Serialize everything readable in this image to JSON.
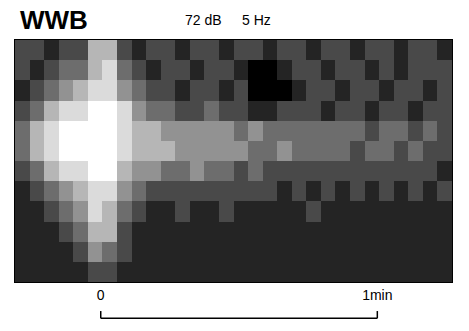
{
  "chart_data": {
    "type": "heatmap",
    "title": "WWB",
    "annotations": [
      "72 dB",
      "5 Hz"
    ],
    "xlim": [
      -0.31,
      1.27
    ],
    "xticks": [
      0,
      {
        "value": 1,
        "label": "1min"
      }
    ],
    "tick_labels": "x",
    "grid": false,
    "color": "gray",
    "cells": [
      [
        4,
        4,
        3,
        4,
        4,
        7,
        7,
        4,
        3,
        4,
        4,
        3,
        4,
        4,
        3,
        4,
        4,
        3,
        4,
        4,
        3,
        4,
        4,
        3,
        4,
        4,
        3,
        4,
        4,
        3
      ],
      [
        4,
        3,
        4,
        5,
        5,
        7,
        8,
        5,
        4,
        3,
        4,
        4,
        3,
        4,
        4,
        3,
        2,
        2,
        3,
        4,
        4,
        3,
        4,
        4,
        3,
        4,
        3,
        4,
        4,
        4
      ],
      [
        3,
        4,
        5,
        6,
        7,
        8,
        8,
        6,
        5,
        4,
        4,
        3,
        4,
        4,
        3,
        4,
        2,
        2,
        2,
        3,
        4,
        4,
        3,
        4,
        4,
        3,
        4,
        4,
        3,
        4
      ],
      [
        4,
        5,
        7,
        8,
        8,
        9,
        9,
        8,
        6,
        5,
        5,
        4,
        4,
        5,
        4,
        4,
        3,
        3,
        4,
        4,
        4,
        3,
        4,
        4,
        3,
        4,
        4,
        3,
        4,
        4
      ],
      [
        5,
        7,
        8,
        9,
        9,
        9,
        9,
        8,
        7,
        7,
        6,
        6,
        6,
        6,
        6,
        5,
        6,
        5,
        5,
        5,
        5,
        5,
        5,
        5,
        4,
        5,
        5,
        4,
        5,
        4
      ],
      [
        5,
        7,
        8,
        9,
        9,
        9,
        9,
        8,
        7,
        7,
        7,
        6,
        6,
        6,
        6,
        6,
        5,
        5,
        6,
        5,
        5,
        5,
        5,
        4,
        5,
        5,
        4,
        5,
        4,
        4
      ],
      [
        4,
        5,
        7,
        8,
        8,
        9,
        9,
        7,
        6,
        6,
        5,
        5,
        6,
        5,
        5,
        4,
        5,
        4,
        4,
        4,
        4,
        4,
        4,
        4,
        4,
        4,
        4,
        4,
        4,
        3
      ],
      [
        3,
        4,
        5,
        6,
        7,
        8,
        8,
        6,
        5,
        4,
        4,
        4,
        4,
        4,
        4,
        4,
        4,
        4,
        3,
        4,
        3,
        4,
        3,
        4,
        3,
        4,
        3,
        4,
        3,
        4
      ],
      [
        3,
        3,
        4,
        5,
        6,
        8,
        7,
        5,
        4,
        3,
        3,
        4,
        3,
        3,
        4,
        3,
        3,
        3,
        3,
        3,
        4,
        3,
        3,
        3,
        3,
        3,
        3,
        3,
        3,
        3
      ],
      [
        3,
        3,
        3,
        4,
        5,
        7,
        7,
        4,
        3,
        3,
        3,
        3,
        3,
        3,
        3,
        3,
        3,
        3,
        3,
        3,
        3,
        3,
        3,
        3,
        3,
        3,
        3,
        3,
        3,
        3
      ],
      [
        3,
        3,
        3,
        3,
        4,
        6,
        5,
        4,
        3,
        3,
        3,
        3,
        3,
        3,
        3,
        3,
        3,
        3,
        3,
        3,
        3,
        3,
        3,
        3,
        3,
        3,
        3,
        3,
        3,
        3
      ],
      [
        3,
        3,
        3,
        3,
        3,
        4,
        4,
        3,
        3,
        3,
        3,
        3,
        3,
        3,
        3,
        3,
        3,
        3,
        3,
        3,
        3,
        3,
        3,
        3,
        3,
        3,
        3,
        3,
        3,
        3
      ]
    ]
  }
}
